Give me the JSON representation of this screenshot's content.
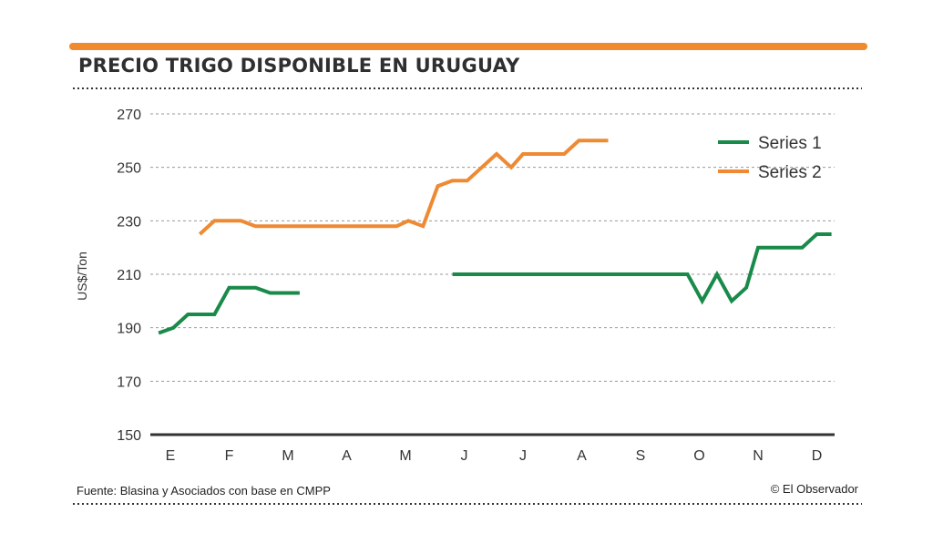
{
  "title": "PRECIO TRIGO DISPONIBLE EN URUGUAY",
  "source": "Fuente: Blasina y Asociados con base en CMPP",
  "credit": "© El Observador",
  "colors": {
    "accent_bar": "#ef8a2d",
    "series1": "#1a8a4a",
    "series2": "#ee8a33",
    "grid": "#9a9a9a",
    "axis": "#333333",
    "text": "#333333"
  },
  "chart_data": {
    "type": "line",
    "title": "PRECIO TRIGO DISPONIBLE EN URUGUAY",
    "xlabel": "",
    "ylabel": "US$/Ton",
    "ylim": [
      150,
      270
    ],
    "xlim": [
      0,
      11
    ],
    "yticks": [
      150,
      170,
      190,
      210,
      230,
      250,
      270
    ],
    "categories": [
      "E",
      "F",
      "M",
      "A",
      "M",
      "J",
      "J",
      "A",
      "S",
      "O",
      "N",
      "D"
    ],
    "grid": true,
    "legend": "top-right",
    "series": [
      {
        "name": "Series 1",
        "color": "#1a8a4a",
        "segments": [
          [
            [
              -0.2,
              188
            ],
            [
              0.05,
              190
            ],
            [
              0.3,
              195
            ],
            [
              0.75,
              195
            ],
            [
              1.0,
              205
            ],
            [
              1.45,
              205
            ],
            [
              1.7,
              203
            ],
            [
              2.2,
              203
            ]
          ],
          [
            [
              4.8,
              210
            ],
            [
              5.5,
              210
            ],
            [
              8.8,
              210
            ],
            [
              9.05,
              200
            ],
            [
              9.3,
              210
            ],
            [
              9.55,
              200
            ],
            [
              9.8,
              205
            ],
            [
              10.0,
              220
            ],
            [
              10.75,
              220
            ],
            [
              11.0,
              225
            ],
            [
              11.25,
              225
            ]
          ]
        ]
      },
      {
        "name": "Series 2",
        "color": "#ee8a33",
        "segments": [
          [
            [
              0.5,
              225
            ],
            [
              0.75,
              230
            ],
            [
              1.2,
              230
            ],
            [
              1.45,
              228
            ],
            [
              3.85,
              228
            ],
            [
              4.05,
              230
            ],
            [
              4.3,
              228
            ],
            [
              4.55,
              243
            ],
            [
              4.8,
              245
            ],
            [
              5.05,
              245
            ],
            [
              5.3,
              250
            ],
            [
              5.55,
              255
            ],
            [
              5.8,
              250
            ],
            [
              6.0,
              255
            ],
            [
              6.7,
              255
            ],
            [
              6.95,
              260
            ],
            [
              7.45,
              260
            ]
          ]
        ]
      }
    ]
  }
}
